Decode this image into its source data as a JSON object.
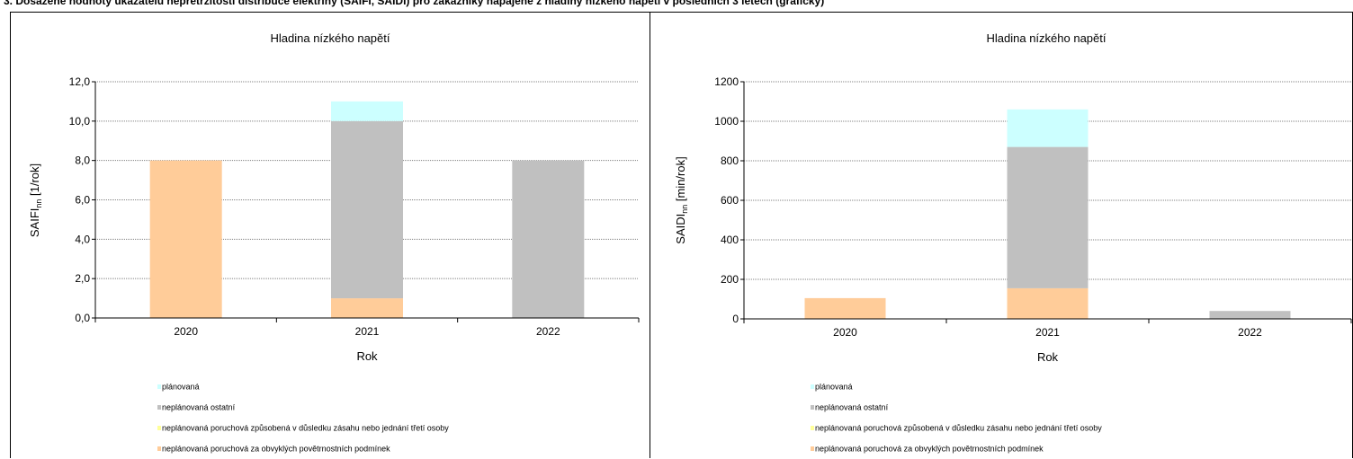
{
  "page": {
    "heading": "3. Dosažené hodnoty ukazatelů nepřetržitosti distribuce elektřiny (SAIFI, SAIDI) pro zákazníky napájené z hladiny nízkého napětí v posledních 3 letech (graficky)"
  },
  "colors": {
    "planovana": "#ccffff",
    "neplanovana_ostatni": "#c0c0c0",
    "neplanovana_treti_osoba": "#ffff99",
    "neplanovana_povetrnostni": "#ffcc99",
    "grid": "#808080",
    "plot_bg": "#ffffff"
  },
  "chart_data": [
    {
      "type": "bar",
      "stacked": true,
      "title": "Hladina nízkého napětí",
      "xlabel": "Rok",
      "ylabel_main": "SAIFI",
      "ylabel_sub": "nn",
      "ylabel_unit": " [1/rok]",
      "categories": [
        "2020",
        "2021",
        "2022"
      ],
      "ylim": [
        0,
        12
      ],
      "yticks": [
        "0,0",
        "2,0",
        "4,0",
        "6,0",
        "8,0",
        "10,0",
        "12,0"
      ],
      "grid": true,
      "legend_position": "bottom",
      "series": [
        {
          "name": "neplanovaná poruchová za obvyklých povětrnostních podmínek",
          "key": "neplanovana_povetrnostni",
          "values": [
            8.0,
            1.0,
            0.0
          ]
        },
        {
          "name": "neplánovaná poruchová způsobená v důsledku zásahu nebo jednání třetí osoby",
          "key": "neplanovana_treti_osoba",
          "values": [
            0.0,
            0.0,
            0.0
          ]
        },
        {
          "name": "neplánovaná ostatní",
          "key": "neplanovana_ostatni",
          "values": [
            0.0,
            9.0,
            8.0
          ]
        },
        {
          "name": "plánovaná",
          "key": "planovana",
          "values": [
            0.0,
            1.0,
            0.0
          ]
        }
      ]
    },
    {
      "type": "bar",
      "stacked": true,
      "title": "Hladina nízkého napětí",
      "xlabel": "Rok",
      "ylabel_main": "SAIDI",
      "ylabel_sub": "nn",
      "ylabel_unit": " [min/rok]",
      "categories": [
        "2020",
        "2021",
        "2022"
      ],
      "ylim": [
        0,
        1200
      ],
      "yticks": [
        "0",
        "200",
        "400",
        "600",
        "800",
        "1000",
        "1200"
      ],
      "grid": true,
      "legend_position": "bottom",
      "series": [
        {
          "name": "neplanovaná poruchová za obvyklých povětrnostních podmínek",
          "key": "neplanovana_povetrnostni",
          "values": [
            105,
            155,
            0
          ]
        },
        {
          "name": "neplánovaná poruchová způsobená v důsledku zásahu nebo jednání třetí osoby",
          "key": "neplanovana_treti_osoba",
          "values": [
            0,
            0,
            0
          ]
        },
        {
          "name": "neplánovaná ostatní",
          "key": "neplanovana_ostatni",
          "values": [
            0,
            715,
            40
          ]
        },
        {
          "name": "plánovaná",
          "key": "planovana",
          "values": [
            0,
            190,
            0
          ]
        }
      ]
    }
  ],
  "legend": [
    {
      "label": "plánovaná",
      "key": "planovana"
    },
    {
      "label": "neplánovaná ostatní",
      "key": "neplanovana_ostatni"
    },
    {
      "label": "neplánovaná poruchová způsobená v důsledku zásahu nebo jednání třetí osoby",
      "key": "neplanovana_treti_osoba"
    },
    {
      "label": "neplánovaná poruchová za obvyklých povětrnostních podmínek",
      "key": "neplanovana_povetrnostni"
    }
  ]
}
